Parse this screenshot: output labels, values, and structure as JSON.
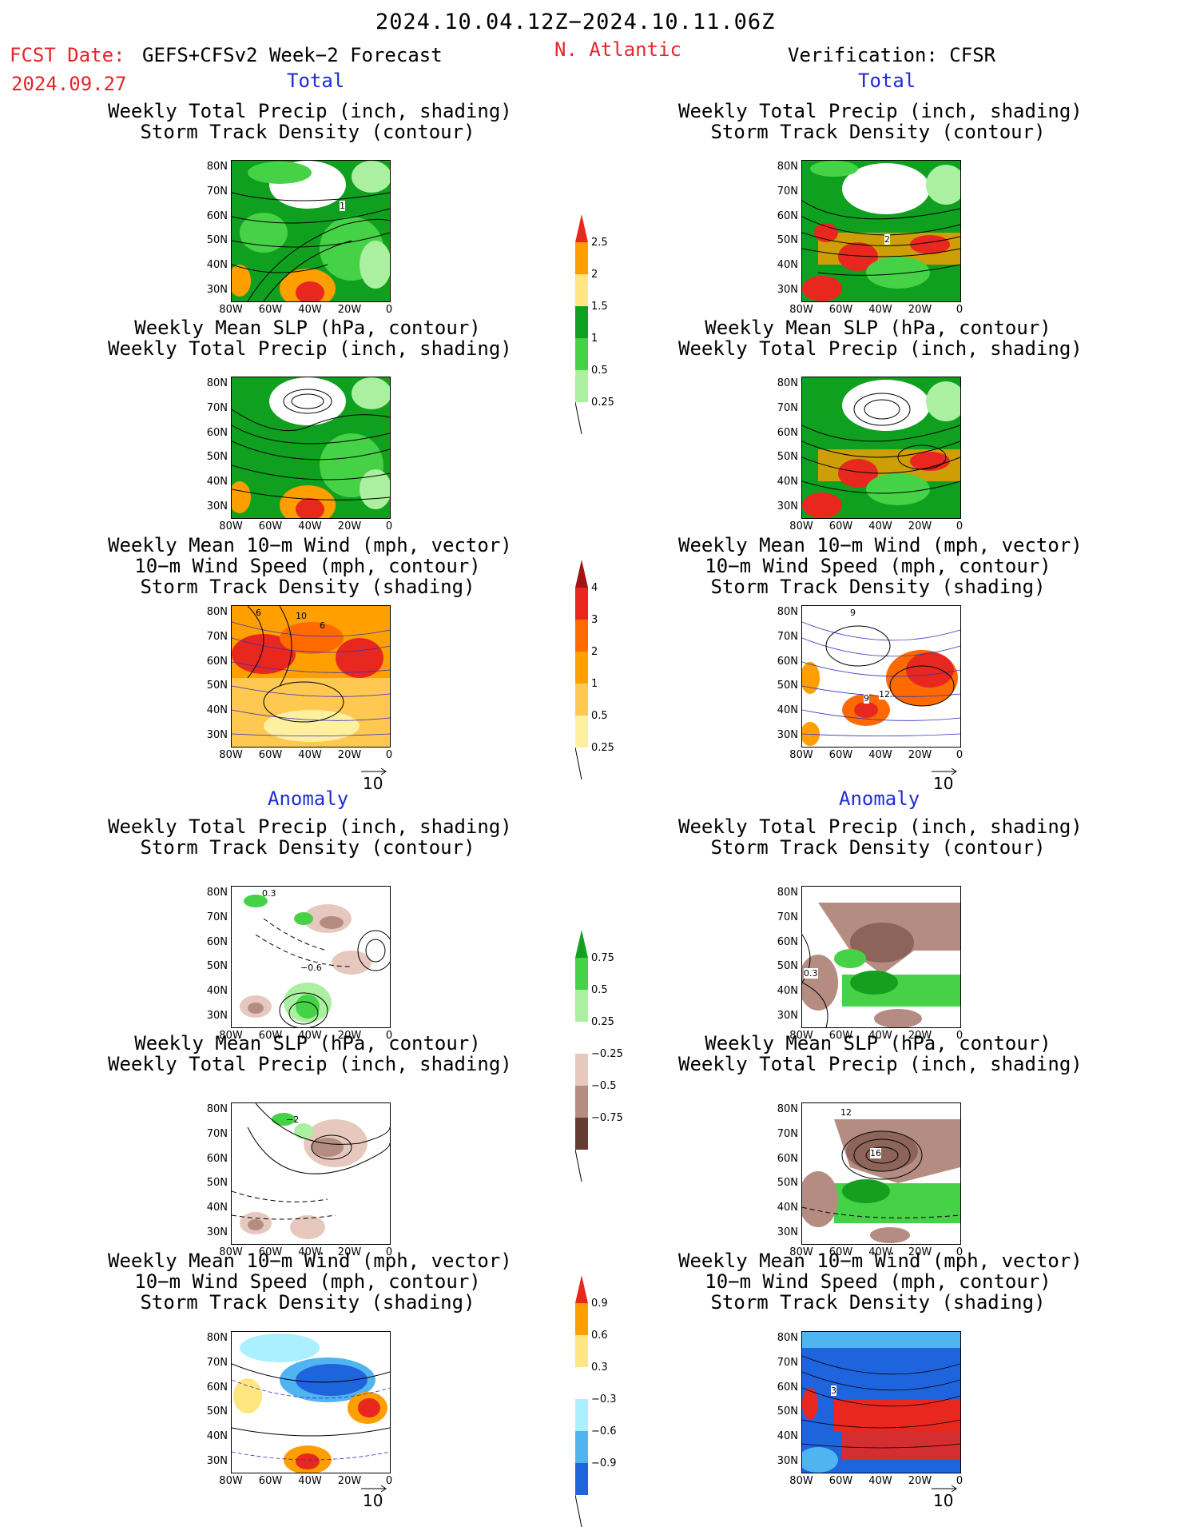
{
  "header": {
    "date_range": "2024.10.04.12Z−2024.10.11.06Z",
    "fcst_date_label": "FCST Date:",
    "fcst_date_value": "2024.09.27",
    "model": "GEFS+CFSv2 Week−2 Forecast",
    "region": "N. Atlantic",
    "verification": "Verification: CFSR"
  },
  "sections": {
    "total": "Total",
    "anomaly": "Anomaly"
  },
  "panel_titles": {
    "precip_track": [
      "Weekly Total Precip (inch, shading)",
      "Storm Track Density (contour)"
    ],
    "slp_precip": [
      "Weekly Mean SLP (hPa, contour)",
      "Weekly Total Precip (inch, shading)"
    ],
    "wind_track": [
      "Weekly Mean 10−m Wind (mph, vector)",
      "10−m Wind Speed (mph, contour)",
      "Storm Track Density (shading)"
    ]
  },
  "axes": {
    "lat": [
      "80N",
      "70N",
      "60N",
      "50N",
      "40N",
      "30N"
    ],
    "lon": [
      "80W",
      "60W",
      "40W",
      "20W",
      "0"
    ]
  },
  "vector_ref": "10",
  "colorbars": {
    "precip_total": {
      "labels": [
        "2.5",
        "2",
        "1.5",
        "1",
        "0.5",
        "0.25"
      ],
      "colors": [
        "#e8281e",
        "#ff9e00",
        "#ffe680",
        "#0ea01e",
        "#46d246",
        "#aaf0a0"
      ]
    },
    "track_total": {
      "labels": [
        "4",
        "3",
        "2",
        "1",
        "0.5",
        "0.25"
      ],
      "colors": [
        "#a01414",
        "#e8281e",
        "#ff6a00",
        "#ffa000",
        "#ffc850",
        "#fff0a0"
      ]
    },
    "precip_anom": {
      "labels": [
        "0.75",
        "0.5",
        "0.25",
        "−0.25",
        "−0.5",
        "−0.75"
      ],
      "colors": [
        "#14a01e",
        "#46d246",
        "#aaf0a0",
        "#ffffff",
        "#e6c8be",
        "#b48c82",
        "#643c32"
      ]
    },
    "track_anom": {
      "labels": [
        "0.9",
        "0.6",
        "0.3",
        "−0.3",
        "−0.6",
        "−0.9"
      ],
      "colors": [
        "#e8281e",
        "#ff9e00",
        "#ffe680",
        "#ffffff",
        "#aaf0ff",
        "#50b4f0",
        "#1e64dc"
      ]
    }
  },
  "contour_labels": {
    "p1L": "1",
    "p1R": "2",
    "p3L_a": "6",
    "p3L_b": "10",
    "p3L_c": "6",
    "p3R_a": "9",
    "p3R_b": "9",
    "p3R_c": "12",
    "p4L_a": "0.3",
    "p4L_b": "−0.6",
    "p4R_a": "0.3",
    "p5L": "−2",
    "p5R_a": "12",
    "p5R_b": "16",
    "p6R": "3"
  }
}
